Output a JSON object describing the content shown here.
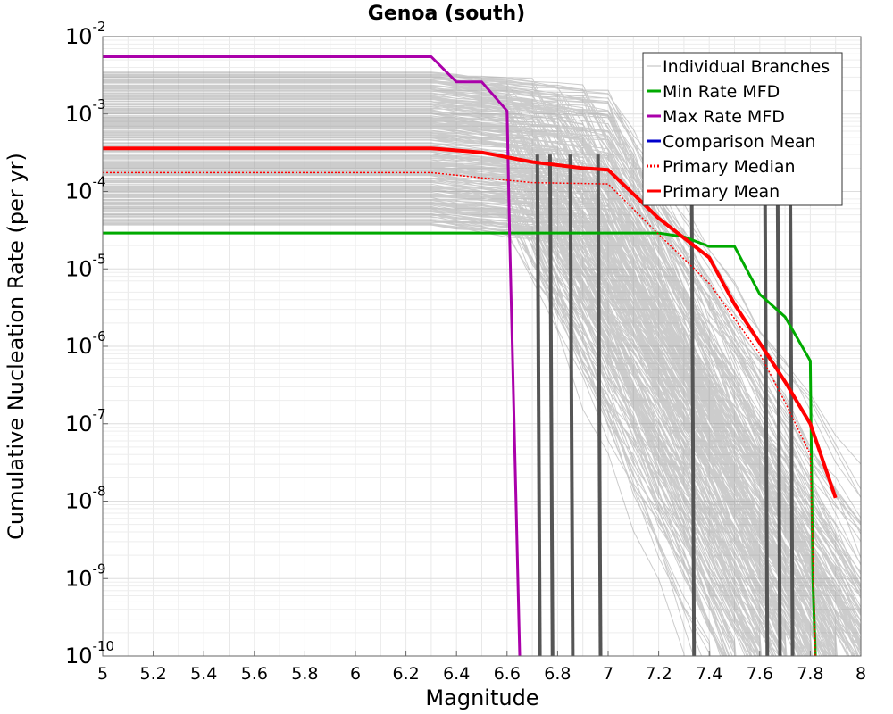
{
  "chart_data": {
    "type": "line",
    "title": "Genoa (south)",
    "xlabel": "Magnitude",
    "ylabel": "Cumulative Nucleation Rate (per yr)",
    "xlim": [
      5,
      8
    ],
    "ylim": [
      1e-10,
      0.01
    ],
    "yscale": "log",
    "grid": true,
    "legend_position": "top-right",
    "x_ticks": [
      "5",
      "5.2",
      "5.4",
      "5.6",
      "5.8",
      "6",
      "6.2",
      "6.4",
      "6.6",
      "6.8",
      "7",
      "7.2",
      "7.4",
      "7.6",
      "7.8",
      "8"
    ],
    "y_ticks": [
      {
        "base": "10",
        "exp": "-2",
        "value": 0.01
      },
      {
        "base": "10",
        "exp": "-3",
        "value": 0.001
      },
      {
        "base": "10",
        "exp": "-4",
        "value": 0.0001
      },
      {
        "base": "10",
        "exp": "-5",
        "value": 1e-05
      },
      {
        "base": "10",
        "exp": "-6",
        "value": 1e-06
      },
      {
        "base": "10",
        "exp": "-7",
        "value": 1e-07
      },
      {
        "base": "10",
        "exp": "-8",
        "value": 1e-08
      },
      {
        "base": "10",
        "exp": "-9",
        "value": 1e-09
      },
      {
        "base": "10",
        "exp": "-10",
        "value": 1e-10
      }
    ],
    "legend": [
      {
        "label": "Individual Branches",
        "color": "#bbbbbb",
        "style": "solid"
      },
      {
        "label": "Min Rate MFD",
        "color": "#00aa00",
        "style": "solid"
      },
      {
        "label": "Max Rate MFD",
        "color": "#aa00aa",
        "style": "solid"
      },
      {
        "label": "Comparison Mean",
        "color": "#0000cc",
        "style": "solid"
      },
      {
        "label": "Primary Median",
        "color": "#ff0000",
        "style": "dotted"
      },
      {
        "label": "Primary Mean",
        "color": "#ff0000",
        "style": "solid"
      }
    ],
    "series": [
      {
        "name": "Min Rate MFD",
        "color": "#00aa00",
        "x": [
          5.0,
          6.3,
          7.0,
          7.2,
          7.3,
          7.4,
          7.5,
          7.6,
          7.7,
          7.8,
          7.81,
          7.82
        ],
        "y": [
          2.9e-05,
          2.9e-05,
          2.9e-05,
          2.9e-05,
          2.6e-05,
          1.95e-05,
          1.95e-05,
          4.7e-06,
          2.4e-06,
          6.5e-07,
          1e-09,
          1e-10
        ]
      },
      {
        "name": "Max Rate MFD",
        "color": "#aa00aa",
        "x": [
          5.0,
          6.3,
          6.4,
          6.5,
          6.6,
          6.61,
          6.65
        ],
        "y": [
          0.0055,
          0.0055,
          0.0026,
          0.0026,
          0.0011,
          3e-05,
          1e-10
        ]
      },
      {
        "name": "Primary Median",
        "color": "#ff0000",
        "x": [
          5.0,
          6.3,
          6.5,
          6.7,
          7.0,
          7.2,
          7.4,
          7.6,
          7.7,
          7.8,
          7.82
        ],
        "y": [
          0.000175,
          0.000175,
          0.00015,
          0.00013,
          0.000125,
          2.8e-05,
          6.5e-06,
          8e-07,
          1.9e-07,
          4e-08,
          1e-10
        ]
      },
      {
        "name": "Primary Mean",
        "color": "#ff0000",
        "x": [
          5.0,
          6.3,
          6.5,
          6.7,
          6.9,
          7.0,
          7.2,
          7.4,
          7.5,
          7.6,
          7.7,
          7.8,
          7.9
        ],
        "y": [
          0.00036,
          0.00036,
          0.00032,
          0.00024,
          0.0002,
          0.00019,
          4.5e-05,
          1.4e-05,
          3.5e-06,
          1.1e-06,
          3.5e-07,
          1e-07,
          1.1e-08
        ]
      }
    ]
  }
}
